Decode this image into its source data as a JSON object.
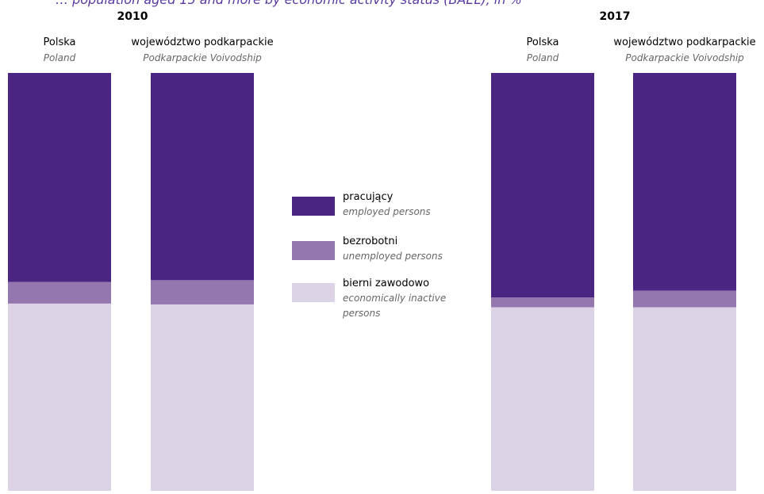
{
  "title_partial": "… population aged 15 and more by economic activity status (BAEL), in %",
  "colors": {
    "employed": "#4a2582",
    "unemployed": "#9577b0",
    "inactive": "#dbd2e6",
    "title_text": "#5a3aa0"
  },
  "legend": [
    {
      "key": "employed",
      "label_pl": "pracujący",
      "label_en": "employed persons"
    },
    {
      "key": "unemployed",
      "label_pl": "bezrobotni",
      "label_en": "unemployed persons"
    },
    {
      "key": "inactive",
      "label_pl": "bierni zawodowo",
      "label_en": "economically inactive persons"
    }
  ],
  "chart_data": {
    "type": "bar",
    "stacked": true,
    "ylim": [
      0,
      100
    ],
    "series_order": [
      "inactive",
      "unemployed",
      "employed"
    ],
    "groups": [
      {
        "year": "2010",
        "bars": [
          {
            "label_pl": "Polska",
            "label_en": "Poland",
            "employed": 50.0,
            "unemployed": 5.2,
            "inactive": 44.8
          },
          {
            "label_pl": "województwo podkarpackie",
            "label_en": "Podkarpackie Voivodship",
            "employed": 49.6,
            "unemployed": 5.8,
            "inactive": 44.6
          }
        ]
      },
      {
        "year": "2017",
        "bars": [
          {
            "label_pl": "Polska",
            "label_en": "Poland",
            "employed": 53.7,
            "unemployed": 2.4,
            "inactive": 43.9
          },
          {
            "label_pl": "województwo podkarpackie",
            "label_en": "Podkarpackie Voivodship",
            "employed": 52.1,
            "unemployed": 4.0,
            "inactive": 43.9
          }
        ]
      }
    ]
  }
}
